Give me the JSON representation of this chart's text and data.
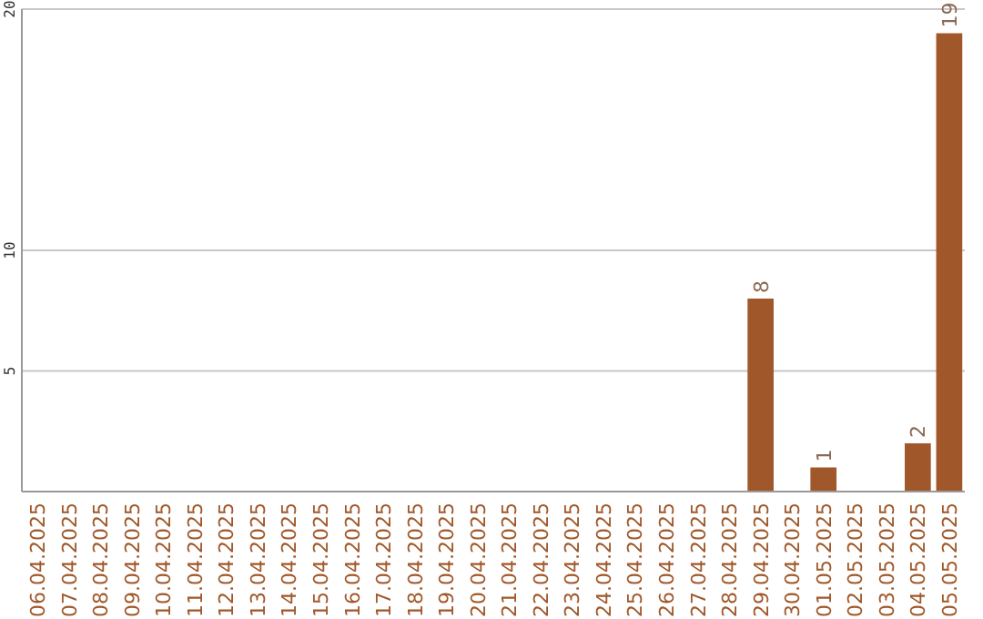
{
  "chart_data": {
    "type": "bar",
    "categories": [
      "06.04.2025",
      "07.04.2025",
      "08.04.2025",
      "09.04.2025",
      "10.04.2025",
      "11.04.2025",
      "12.04.2025",
      "13.04.2025",
      "14.04.2025",
      "15.04.2025",
      "16.04.2025",
      "17.04.2025",
      "18.04.2025",
      "19.04.2025",
      "20.04.2025",
      "21.04.2025",
      "22.04.2025",
      "23.04.2025",
      "24.04.2025",
      "25.04.2025",
      "26.04.2025",
      "27.04.2025",
      "28.04.2025",
      "29.04.2025",
      "30.04.2025",
      "01.05.2025",
      "02.05.2025",
      "03.05.2025",
      "04.05.2025",
      "05.05.2025"
    ],
    "values": [
      0,
      0,
      0,
      0,
      0,
      0,
      0,
      0,
      0,
      0,
      0,
      0,
      0,
      0,
      0,
      0,
      0,
      0,
      0,
      0,
      0,
      0,
      0,
      8,
      0,
      1,
      0,
      0,
      2,
      19
    ],
    "value_labels": [
      null,
      null,
      null,
      null,
      null,
      null,
      null,
      null,
      null,
      null,
      null,
      null,
      null,
      null,
      null,
      null,
      null,
      null,
      null,
      null,
      null,
      null,
      null,
      "8",
      null,
      "1",
      null,
      null,
      "2",
      "19"
    ],
    "color": "#a0582a",
    "ylim": [
      0,
      20
    ],
    "yticks": [
      5,
      10,
      20
    ],
    "grid": "y"
  }
}
